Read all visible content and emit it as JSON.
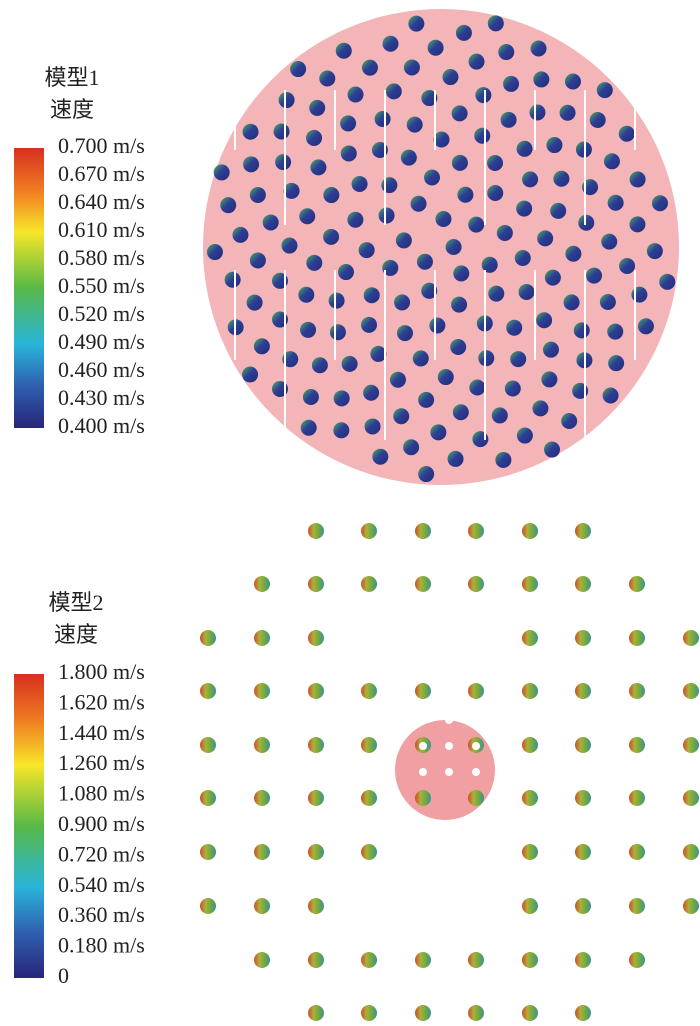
{
  "panels": [
    {
      "title": "模型1",
      "subtitle": "速度",
      "legend_labels": [
        "0.700 m/s",
        "0.670 m/s",
        "0.640 m/s",
        "0.610 m/s",
        "0.580 m/s",
        "0.550 m/s",
        "0.520 m/s",
        "0.490 m/s",
        "0.460 m/s",
        "0.430 m/s",
        "0.400 m/s"
      ]
    },
    {
      "title": "模型2",
      "subtitle": "速度",
      "legend_labels": [
        "1.800 m/s",
        "1.620 m/s",
        "1.440 m/s",
        "1.260 m/s",
        "1.080 m/s",
        "0.900 m/s",
        "0.720 m/s",
        "0.540 m/s",
        "0.360 m/s",
        "0.180 m/s",
        "0"
      ]
    }
  ]
}
